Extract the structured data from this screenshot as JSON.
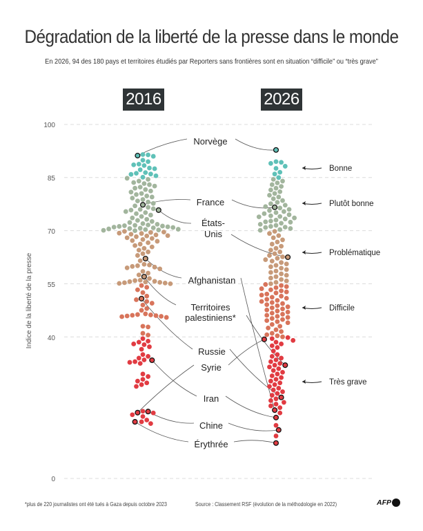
{
  "title": "Dégradation de la liberté de la presse dans le monde",
  "subtitle": "En 2026, 94 des 180 pays et territoires étudiés par Reporters sans frontières sont en situation “difficile” ou “très grave”",
  "footnote": "*plus de 220 journalistes ont été tués à Gaza depuis octobre 2023",
  "source": "Source : Classement RSF (évolution de la méthodologie en 2022)",
  "logo": "AFP",
  "chart_data": {
    "type": "scatter",
    "subtype": "beeswarm",
    "title": "Dégradation de la liberté de la presse dans le monde",
    "ylabel": "Indice de la liberté de la presse",
    "ylim": [
      0,
      100
    ],
    "yticks": [
      100,
      85,
      70,
      55,
      40,
      0
    ],
    "grid": true,
    "columns": [
      "2016",
      "2026"
    ],
    "categories": [
      {
        "name": "Bonne",
        "min": 85,
        "color": "#5fc1b8"
      },
      {
        "name": "Plutôt bonne",
        "min": 70,
        "color": "#a2b59d"
      },
      {
        "name": "Problématique",
        "min": 55,
        "color": "#c79a79"
      },
      {
        "name": "Difficile",
        "min": 40,
        "color": "#d8745b"
      },
      {
        "name": "Très grave",
        "min": 0,
        "color": "#e13b42"
      }
    ],
    "highlighted": [
      {
        "key": "norvege",
        "label": "Norvège",
        "y2016": 91.2,
        "y2026": 92.8
      },
      {
        "key": "france",
        "label": "France",
        "y2016": 77.3,
        "y2026": 76.6
      },
      {
        "key": "usa",
        "label": "États-Unis",
        "y2016": 75.8,
        "y2026": 62.5
      },
      {
        "key": "afghanistan",
        "label": "Afghanistan",
        "y2016": 62.1,
        "y2026": 19.3
      },
      {
        "key": "palestine",
        "label": "Territoires palestiniens*",
        "y2016": 57.0,
        "y2026": 32.0
      },
      {
        "key": "russie",
        "label": "Russie",
        "y2016": 50.8,
        "y2026": 22.9
      },
      {
        "key": "syrie",
        "label": "Syrie",
        "y2016": 18.6,
        "y2026": 39.3
      },
      {
        "key": "iran",
        "label": "Iran",
        "y2016": 33.4,
        "y2026": 17.2
      },
      {
        "key": "chine",
        "label": "Chine",
        "y2016": 18.9,
        "y2026": 13.7
      },
      {
        "key": "erythree",
        "label": "Érythrée",
        "y2016": 16.0,
        "y2026": 10.0
      }
    ],
    "others_2016": [
      91.5,
      91.4,
      91.0,
      89.9,
      89.5,
      88.8,
      88.6,
      88.4,
      87.7,
      87.5,
      87.2,
      86.4,
      86.2,
      86.0,
      85.9,
      85.5,
      85.1,
      84.8,
      84.5,
      84.0,
      83.6,
      83.3,
      83.0,
      82.6,
      82.3,
      82.0,
      81.6,
      81.2,
      80.9,
      80.5,
      80.2,
      79.8,
      79.5,
      79.2,
      78.8,
      78.4,
      78.1,
      77.7,
      77.0,
      76.6,
      76.2,
      76.0,
      75.8,
      75.4,
      75.1,
      74.8,
      74.4,
      74.0,
      73.6,
      73.2,
      72.9,
      72.6,
      72.3,
      72.0,
      71.8,
      71.6,
      71.5,
      71.4,
      71.3,
      71.2,
      71.1,
      71.0,
      70.9,
      70.8,
      70.7,
      70.6,
      70.5,
      70.4,
      70.3,
      70.2,
      70.1,
      70.0,
      69.8,
      69.6,
      69.5,
      69.3,
      69.2,
      69.0,
      68.8,
      68.6,
      68.5,
      68.3,
      68.0,
      67.8,
      67.5,
      67.2,
      67.0,
      66.6,
      66.2,
      65.8,
      65.4,
      65.0,
      64.5,
      64.0,
      63.5,
      63.0,
      61.5,
      60.5,
      60.3,
      60.1,
      59.9,
      59.7,
      59.5,
      59.2,
      58.5,
      58.0,
      57.5,
      56.5,
      56.0,
      55.9,
      55.7,
      55.6,
      55.5,
      55.4,
      55.3,
      55.2,
      55.1,
      55.0,
      54.5,
      54.0,
      53.3,
      52.5,
      51.5,
      50.5,
      50.0,
      49.5,
      49.0,
      48.0,
      47.5,
      46.5,
      46.3,
      46.2,
      46.1,
      46.0,
      45.9,
      45.8,
      45.7,
      45.5,
      43.0,
      42.8,
      41.0,
      40.5,
      39.5,
      38.8,
      38.0,
      37.2,
      36.5,
      34.5,
      34.0,
      33.5,
      33.0,
      32.8,
      32.5,
      29.5,
      28.8,
      28.0,
      27.5,
      27.0,
      26.5,
      26.0,
      19.0,
      18.5,
      18.0,
      17.5,
      16.5,
      16.0,
      15.5,
      38.5,
      37.8,
      35.0
    ],
    "others_2026": [
      89.5,
      89.3,
      89.0,
      88.2,
      87.6,
      86.5,
      86.0,
      85.0,
      84.5,
      84.0,
      83.5,
      83.0,
      82.5,
      82.0,
      81.5,
      81.0,
      80.5,
      80.0,
      79.5,
      79.0,
      78.5,
      78.0,
      77.6,
      77.2,
      76.8,
      76.4,
      76.0,
      75.7,
      75.4,
      75.1,
      74.8,
      74.5,
      74.2,
      73.9,
      73.6,
      73.3,
      73.0,
      72.7,
      72.4,
      72.1,
      71.8,
      71.5,
      71.2,
      70.9,
      70.6,
      70.3,
      70.1,
      72.5,
      74.0,
      71.0,
      69.8,
      69.2,
      68.6,
      68.0,
      67.4,
      66.8,
      66.2,
      65.6,
      65.0,
      64.5,
      64.0,
      63.5,
      63.0,
      62.6,
      62.2,
      61.8,
      61.4,
      61.0,
      60.6,
      60.2,
      59.8,
      59.4,
      59.0,
      58.6,
      58.2,
      57.8,
      57.4,
      57.0,
      56.6,
      56.2,
      55.8,
      55.4,
      55.0,
      54.8,
      54.5,
      54.2,
      53.9,
      53.6,
      53.3,
      53.0,
      52.7,
      52.4,
      52.1,
      51.8,
      51.5,
      51.2,
      50.9,
      50.6,
      50.3,
      50.0,
      49.7,
      49.4,
      49.1,
      48.8,
      48.5,
      48.2,
      47.9,
      47.6,
      47.3,
      47.0,
      46.7,
      46.4,
      46.1,
      45.8,
      45.5,
      45.2,
      44.9,
      44.6,
      44.3,
      44.0,
      43.5,
      43.0,
      42.5,
      42.0,
      41.5,
      41.0,
      40.6,
      40.3,
      40.0,
      39.8,
      39.5,
      39.0,
      38.5,
      38.0,
      37.5,
      37.0,
      36.0,
      35.0,
      34.5,
      34.0,
      33.5,
      33.0,
      32.5,
      32.0,
      31.5,
      31.0,
      30.5,
      30.0,
      29.5,
      29.0,
      28.5,
      28.0,
      27.5,
      27.0,
      26.5,
      26.0,
      25.5,
      25.0,
      24.5,
      24.0,
      23.5,
      22.5,
      22.0,
      21.5,
      21.0,
      20.5,
      20.0,
      18.5,
      15.0,
      12.0
    ]
  },
  "labels": {
    "norvege": "Norvège",
    "france": "France",
    "usa_1": "États-",
    "usa_2": "Unis",
    "afghanistan": "Afghanistan",
    "palestine_1": "Territoires",
    "palestine_2": "palestiniens*",
    "russie": "Russie",
    "syrie": "Syrie",
    "iran": "Iran",
    "chine": "Chine",
    "erythree": "Érythrée"
  },
  "ticks": [
    "100",
    "85",
    "70",
    "55",
    "40",
    "0"
  ]
}
